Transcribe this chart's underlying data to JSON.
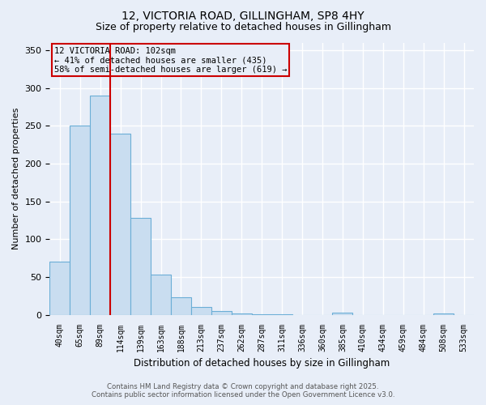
{
  "title1": "12, VICTORIA ROAD, GILLINGHAM, SP8 4HY",
  "title2": "Size of property relative to detached houses in Gillingham",
  "xlabel": "Distribution of detached houses by size in Gillingham",
  "ylabel": "Number of detached properties",
  "categories": [
    "40sqm",
    "65sqm",
    "89sqm",
    "114sqm",
    "139sqm",
    "163sqm",
    "188sqm",
    "213sqm",
    "237sqm",
    "262sqm",
    "287sqm",
    "311sqm",
    "336sqm",
    "360sqm",
    "385sqm",
    "410sqm",
    "434sqm",
    "459sqm",
    "484sqm",
    "508sqm",
    "533sqm"
  ],
  "values": [
    70,
    250,
    290,
    240,
    128,
    53,
    23,
    10,
    5,
    2,
    1,
    1,
    0,
    0,
    3,
    0,
    0,
    0,
    0,
    2,
    0
  ],
  "bar_color": "#c9ddf0",
  "bar_edge_color": "#6baed6",
  "bar_edge_width": 0.8,
  "vline_x": 2.5,
  "vline_color": "#cc0000",
  "ylim": [
    0,
    360
  ],
  "yticks": [
    0,
    50,
    100,
    150,
    200,
    250,
    300,
    350
  ],
  "annotation_text": "12 VICTORIA ROAD: 102sqm\n← 41% of detached houses are smaller (435)\n58% of semi-detached houses are larger (619) →",
  "annotation_box_color": "#cc0000",
  "footer1": "Contains HM Land Registry data © Crown copyright and database right 2025.",
  "footer2": "Contains public sector information licensed under the Open Government Licence v3.0.",
  "bg_color": "#e8eef8",
  "grid_color": "#ffffff",
  "title_fontsize": 10,
  "subtitle_fontsize": 9
}
